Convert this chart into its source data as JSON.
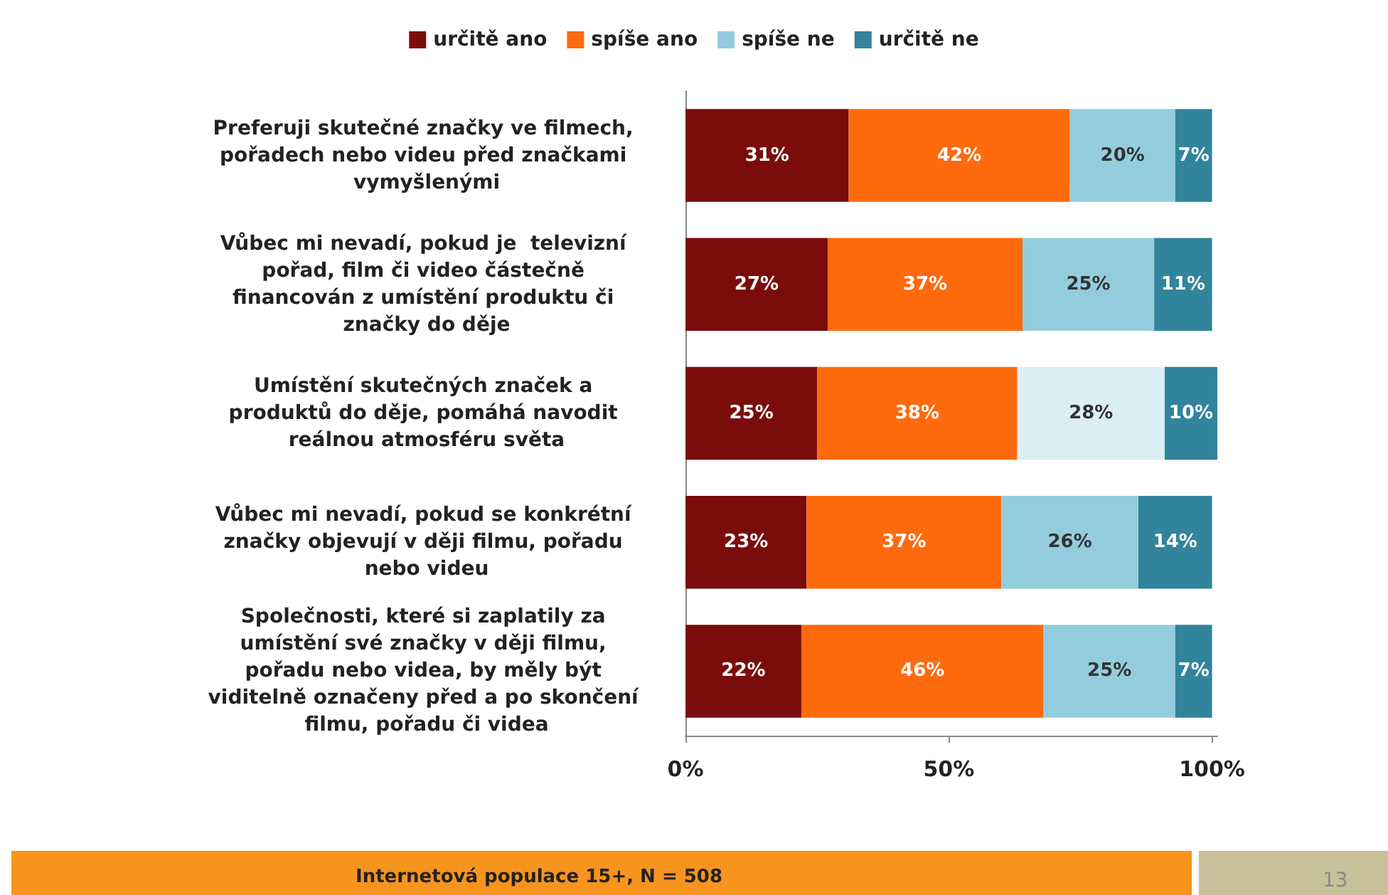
{
  "chart_data": {
    "type": "bar",
    "orientation": "horizontal",
    "stacked": true,
    "categories": [
      "Preferuji skutečné značky ve filmech, pořadech nebo videu před značkami vymyšlenými",
      "Vůbec mi nevadí, pokud je  televizní pořad, film či video částečně financován z umístění produktu či značky do děje",
      "Umístění skutečných značek a produktů do děje, pomáhá navodit reálnou atmosféru světa",
      "Vůbec mi nevadí, pokud se konkrétní značky objevují v ději filmu, pořadu nebo videu",
      "Společnosti, které si zaplatily za umístění své značky v ději filmu, pořadu nebo videa, by měly být viditelně označeny před a po skončení filmu, pořadu či videa"
    ],
    "series": [
      {
        "name": "určitě ano",
        "color": "#7b0c0c",
        "values": [
          31,
          27,
          25,
          23,
          22
        ],
        "value_labels": [
          "31%",
          "27%",
          "25%",
          "23%",
          "22%"
        ]
      },
      {
        "name": "spíše ano",
        "color": "#ff6a0d",
        "values": [
          42,
          37,
          38,
          37,
          46
        ],
        "value_labels": [
          "42%",
          "37%",
          "38%",
          "37%",
          "46%"
        ]
      },
      {
        "name": "spíše ne",
        "color": "#93cddd",
        "colors": [
          "#93cddd",
          "#93cddd",
          "#dbeef3",
          "#93cddd",
          "#93cddd"
        ],
        "values": [
          20,
          25,
          28,
          26,
          25
        ],
        "value_labels": [
          "20%",
          "25%",
          "28%",
          "26%",
          "25%"
        ]
      },
      {
        "name": "určitě ne",
        "color": "#31849b",
        "values": [
          7,
          11,
          10,
          14,
          7
        ],
        "value_labels": [
          "7%",
          "11%",
          "10%",
          "14%",
          "7%"
        ]
      }
    ],
    "xlim": [
      0,
      101
    ],
    "xticks": [
      {
        "value": 0,
        "label": "0%"
      },
      {
        "value": 50,
        "label": "50%"
      },
      {
        "value": 100,
        "label": "100%"
      }
    ],
    "grid": false,
    "legend": "top",
    "annotations": [
      "Internetová populace 15+, N = 508",
      "13"
    ]
  }
}
